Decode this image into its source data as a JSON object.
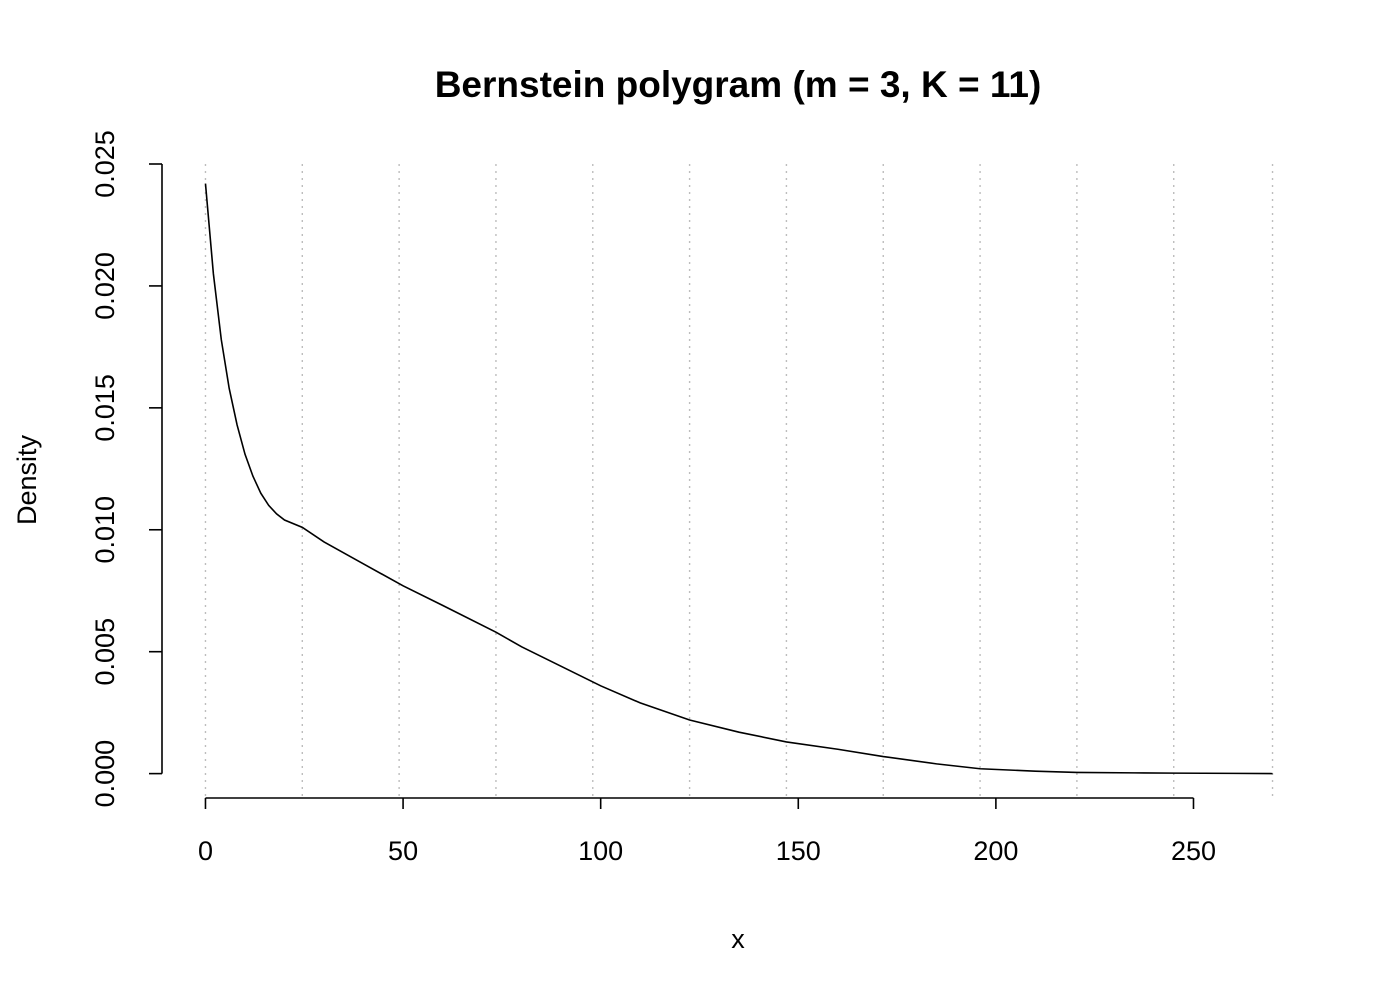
{
  "chart_data": {
    "type": "line",
    "title": "Bernstein polygram (m = 3, K = 11)",
    "xlabel": "x",
    "ylabel": "Density",
    "xlim": [
      -11,
      281
    ],
    "ylim": [
      -0.001,
      0.025
    ],
    "x_ticks": [
      "0",
      "50",
      "100",
      "150",
      "200",
      "250"
    ],
    "x_tick_values": [
      0,
      50,
      100,
      150,
      200,
      250
    ],
    "y_ticks": [
      "0.000",
      "0.005",
      "0.010",
      "0.015",
      "0.020",
      "0.025"
    ],
    "y_tick_values": [
      0,
      0.005,
      0.01,
      0.015,
      0.02,
      0.025
    ],
    "grid": "vertical dotted at bin breaks",
    "breaks": [
      0,
      24.5,
      49,
      73.5,
      98,
      122.5,
      147,
      171.5,
      196,
      220.5,
      245,
      270
    ],
    "series": [
      {
        "x": [
          0,
          2,
          4,
          6,
          8,
          10,
          12,
          14,
          16,
          18,
          20,
          24.5,
          30,
          40,
          50,
          60,
          73.5,
          80,
          90,
          100,
          110,
          122.5,
          135,
          147,
          160,
          171.5,
          185,
          196,
          210,
          220.5,
          235,
          245,
          260,
          270
        ],
        "values": [
          0.0242,
          0.0205,
          0.0178,
          0.0158,
          0.0143,
          0.0131,
          0.0122,
          0.0115,
          0.011,
          0.01065,
          0.0104,
          0.0101,
          0.0095,
          0.0086,
          0.0077,
          0.0069,
          0.0058,
          0.0052,
          0.0044,
          0.0036,
          0.0029,
          0.0022,
          0.0017,
          0.0013,
          0.001,
          0.0007,
          0.0004,
          0.0002,
          0.0001,
          5e-05,
          3e-05,
          2e-05,
          1e-05,
          0.0
        ]
      }
    ]
  }
}
